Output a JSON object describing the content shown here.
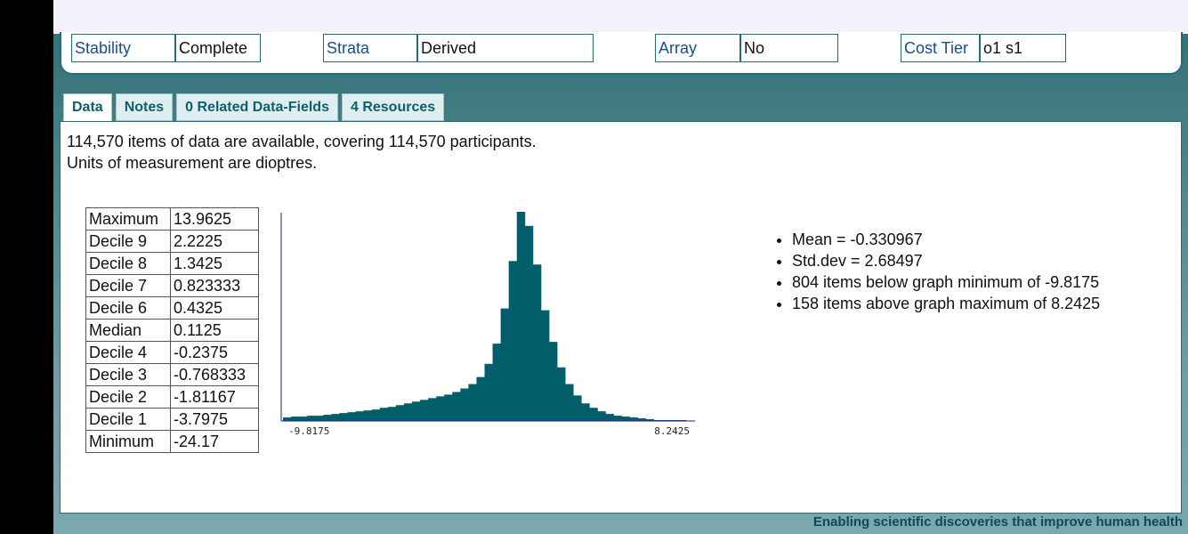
{
  "meta": {
    "stability": {
      "key": "Stability",
      "value": "Complete"
    },
    "strata": {
      "key": "Strata",
      "value": "Derived"
    },
    "array": {
      "key": "Array",
      "value": "No"
    },
    "cost_tier": {
      "key": "Cost Tier",
      "value": "o1 s1"
    }
  },
  "tabs": [
    {
      "label": "Data",
      "active": true
    },
    {
      "label": "Notes",
      "active": false
    },
    {
      "label": "0 Related Data-Fields",
      "active": false
    },
    {
      "label": "4 Resources",
      "active": false
    }
  ],
  "summary": {
    "line1": "114,570 items of data are available, covering 114,570 participants.",
    "line2": "Units of measurement are dioptres."
  },
  "stats": [
    {
      "label": "Maximum",
      "value": "13.9625"
    },
    {
      "label": "Decile 9",
      "value": "2.2225"
    },
    {
      "label": "Decile 8",
      "value": "1.3425"
    },
    {
      "label": "Decile 7",
      "value": "0.823333"
    },
    {
      "label": "Decile 6",
      "value": "0.4325"
    },
    {
      "label": "Median",
      "value": "0.1125"
    },
    {
      "label": "Decile 4",
      "value": "-0.2375"
    },
    {
      "label": "Decile 3",
      "value": "-0.768333"
    },
    {
      "label": "Decile 2",
      "value": "-1.81167"
    },
    {
      "label": "Decile 1",
      "value": "-3.7975"
    },
    {
      "label": "Minimum",
      "value": "-24.17"
    }
  ],
  "notes": [
    "Mean = -0.330967",
    "Std.dev = 2.68497",
    "804 items below graph minimum of -9.8175",
    "158 items above graph maximum of 8.2425"
  ],
  "footer": "Enabling scientific discoveries that improve human health",
  "colors": {
    "bar": "#005f6b",
    "axis": "#1a1aa0",
    "accent": "#1e6f7b"
  },
  "chart_data": {
    "type": "bar",
    "title": "",
    "xlabel": "",
    "ylabel": "",
    "xlim": [
      -9.8175,
      8.2425
    ],
    "x_tick_labels": [
      "-9.8175",
      "8.2425"
    ],
    "values": [
      4,
      5,
      5,
      6,
      6,
      7,
      8,
      9,
      10,
      11,
      12,
      13,
      15,
      16,
      18,
      20,
      22,
      24,
      26,
      28,
      30,
      33,
      37,
      42,
      50,
      65,
      88,
      128,
      182,
      238,
      222,
      178,
      126,
      90,
      61,
      42,
      29,
      20,
      15,
      11,
      8,
      6,
      5,
      4,
      3,
      2,
      1,
      1,
      1,
      1
    ]
  }
}
